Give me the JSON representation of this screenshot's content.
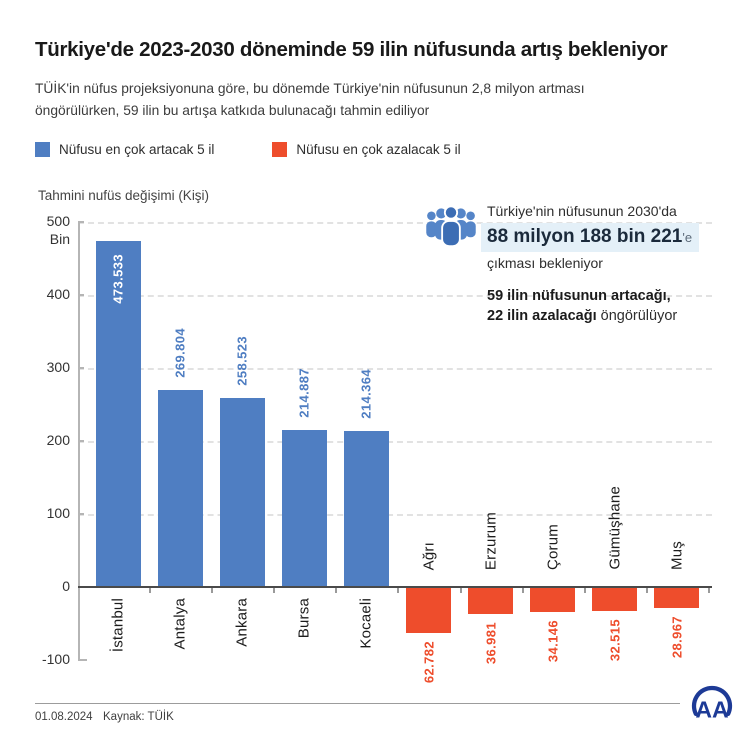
{
  "title": "Türkiye'de 2023-2030 döneminde 59 ilin nüfusunda artış bekleniyor",
  "subtitle_line1": "TÜİK'in nüfus projeksiyonuna göre, bu dönemde Türkiye'nin nüfusunun 2,8 milyon artması",
  "subtitle_line2": "öngörülürken, 59 ilin bu artışa katkıda bulunacağı tahmin ediliyor",
  "legend": [
    {
      "label": "Nüfusu en çok artacak 5 il",
      "color": "#4f7ec2"
    },
    {
      "label": "Nüfusu en çok azalacak 5 il",
      "color": "#ee4d2c"
    }
  ],
  "axis_title": "Tahmini nufüs değişimi (Kişi)",
  "chart_data": {
    "type": "bar",
    "title": "Tahmini nufüs değişimi (Kişi)",
    "xlabel": "",
    "ylabel": "Tahmini nufüs değişimi (Kişi)",
    "unit": "Bin (thousands of people)",
    "categories": [
      "İstanbul",
      "Antalya",
      "Ankara",
      "Bursa",
      "Kocaeli",
      "Ağrı",
      "Erzurum",
      "Çorum",
      "Gümüşhane",
      "Muş"
    ],
    "values": [
      473.533,
      269.804,
      258.523,
      214.887,
      214.364,
      -62.782,
      -36.981,
      -34.146,
      -32.515,
      -28.967
    ],
    "value_labels": [
      "473.533",
      "269.804",
      "258.523",
      "214.887",
      "214.364",
      "62.782",
      "36.981",
      "34.146",
      "32.515",
      "28.967"
    ],
    "colors": {
      "positive": "#4f7ec2",
      "negative": "#ee4d2c"
    },
    "value_label_color_inside": "#ffffff",
    "y_ticks": [
      500,
      400,
      300,
      200,
      100,
      0,
      -100
    ],
    "y_unit_label": "Bin",
    "ylim": [
      -100,
      500
    ],
    "grid": "dashed horizontal gridlines at 100..500",
    "legend_position": "top-left above chart"
  },
  "info_panel": {
    "line1": "Türkiye'nin nüfusunun 2030'da",
    "highlight": "88 milyon 188 bin 221",
    "highlight_suffix": "'e",
    "highlight_bg": "#e4f0f8",
    "line3": "çıkması bekleniyor",
    "bold1": "59 ilin nüfusunun artacağı,",
    "bold2": "22 ilin azalacağı",
    "rest2": " öngörülüyor",
    "icon": "people-group-icon"
  },
  "footer": {
    "date": "01.08.2024",
    "source": "Kaynak: TÜİK",
    "logo": "AA (Anadolu Ajansı)"
  }
}
